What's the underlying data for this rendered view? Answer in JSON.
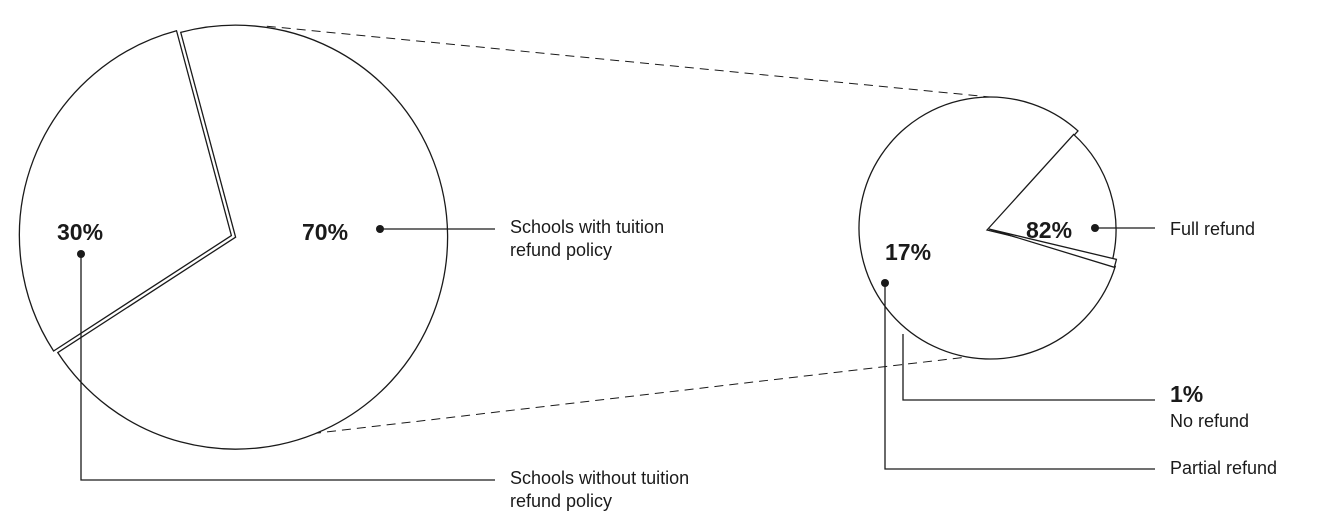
{
  "chart_data": [
    {
      "type": "pie",
      "categories": [
        "Schools with tuition refund policy",
        "Schools without tuition refund policy"
      ],
      "values": [
        70,
        30
      ],
      "value_labels": [
        "70%",
        "30%"
      ],
      "exploded": "Schools with tuition refund policy",
      "category_lines": [
        [
          "Schools with tuition",
          "refund policy"
        ],
        [
          "Schools without tuition",
          "refund policy"
        ]
      ]
    },
    {
      "type": "pie",
      "categories": [
        "Full refund",
        "Partial refund",
        "No refund"
      ],
      "values": [
        82,
        17,
        1
      ],
      "value_labels": [
        "82%",
        "17%",
        "1%"
      ],
      "breakdown_of": "Schools with tuition refund policy",
      "category_lines": [
        [
          "Full refund"
        ],
        [
          "Partial refund"
        ],
        [
          "No refund"
        ]
      ]
    }
  ],
  "colors": {
    "ink": "#1a1a1a",
    "fill": "#ffffff"
  }
}
